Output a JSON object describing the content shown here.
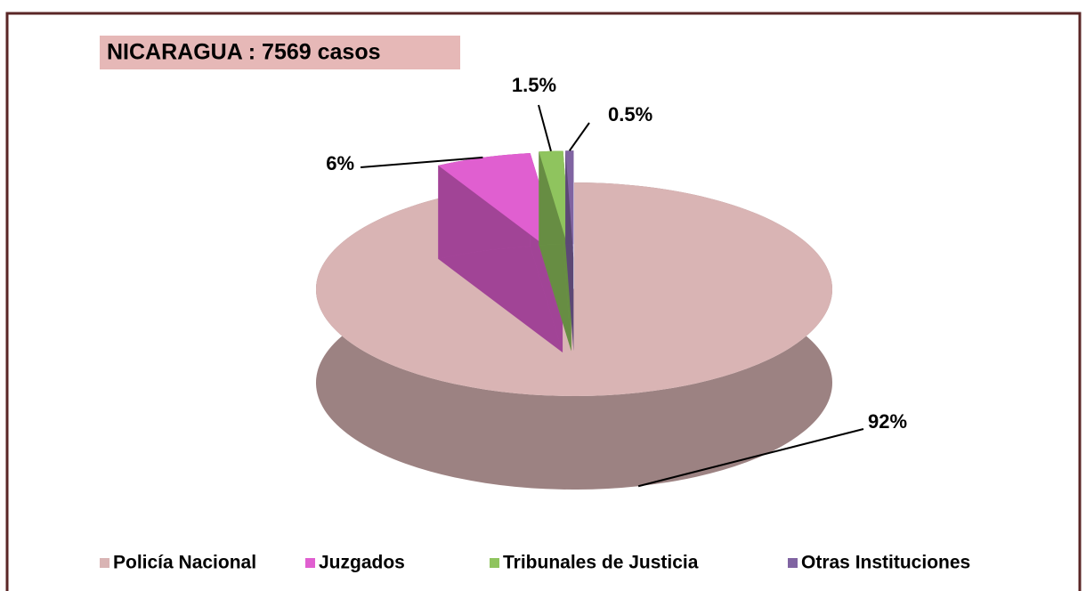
{
  "chart_data": {
    "type": "pie3d",
    "title": "NICARAGUA : 7569 casos",
    "categories": [
      "Policía Nacional",
      "Juzgados",
      "Tribunales de Justicia",
      "Otras Instituciones"
    ],
    "values": [
      92,
      6,
      1.5,
      0.5
    ],
    "value_labels": [
      "92%",
      "6%",
      "1.5%",
      "0.5%"
    ],
    "colors": [
      "#d9b4b4",
      "#e05fd0",
      "#8fc45e",
      "#8064a2"
    ],
    "legend": "bottom"
  }
}
